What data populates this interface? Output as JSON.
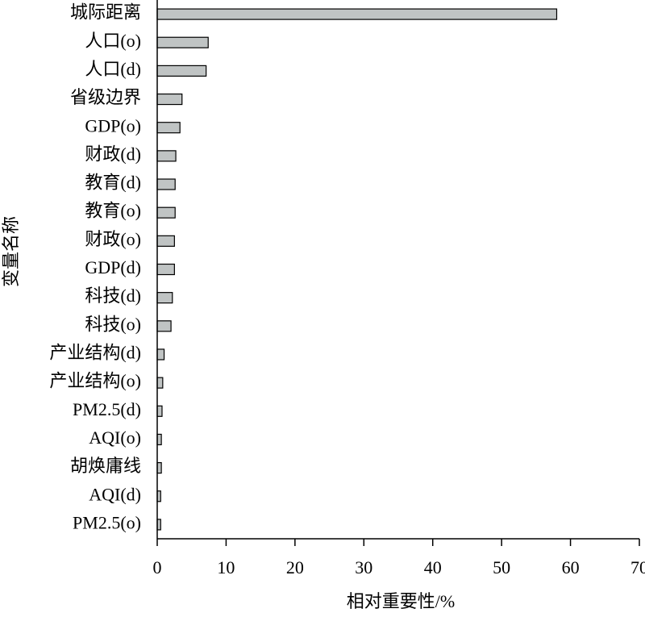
{
  "chart_data": {
    "type": "bar",
    "orientation": "horizontal",
    "x_label": "相对重要性/%",
    "y_label": "变量名称",
    "categories": [
      "城际距离",
      "人口(o)",
      "人口(d)",
      "省级边界",
      "GDP(o)",
      "财政(d)",
      "教育(d)",
      "教育(o)",
      "财政(o)",
      "GDP(d)",
      "科技(d)",
      "科技(o)",
      "产业结构(d)",
      "产业结构(o)",
      "PM2.5(d)",
      "AQI(o)",
      "胡焕庸线",
      "AQI(d)",
      "PM2.5(o)"
    ],
    "values": [
      58.0,
      7.4,
      7.1,
      3.6,
      3.3,
      2.7,
      2.6,
      2.6,
      2.5,
      2.5,
      2.2,
      2.0,
      1.0,
      0.8,
      0.7,
      0.6,
      0.6,
      0.5,
      0.5
    ],
    "color": "#c0c4c4",
    "xlim": [
      0,
      70
    ],
    "xticks": [
      0,
      10,
      20,
      30,
      40,
      50,
      60,
      70
    ]
  }
}
